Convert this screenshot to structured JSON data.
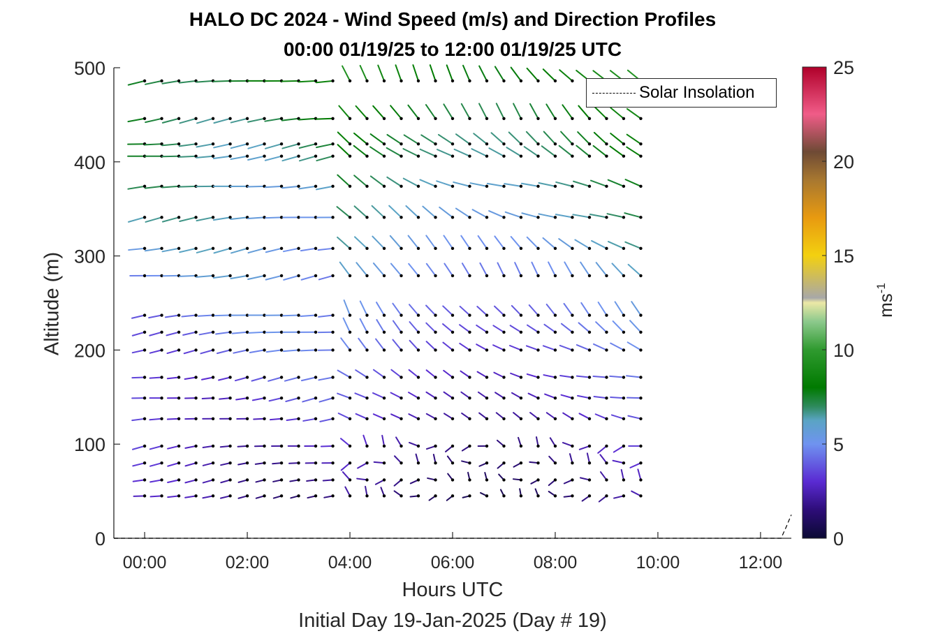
{
  "chart_data": {
    "type": "quiver",
    "title": "HALO DC 2024 - Wind Speed (m/s) and Direction Profiles",
    "subtitle": "00:00 01/19/25 to 12:00 01/19/25  UTC",
    "xlabel": "Hours UTC",
    "xlabel2": "Initial Day 19-Jan-2025 (Day # 19)",
    "ylabel": "Altitude (m)",
    "xlim": [
      -0.6,
      12.6
    ],
    "ylim": [
      0,
      500
    ],
    "x_ticks": [
      0,
      2,
      4,
      6,
      8,
      10,
      12
    ],
    "x_tick_labels": [
      "00:00",
      "02:00",
      "04:00",
      "06:00",
      "08:00",
      "10:00",
      "12:00"
    ],
    "y_ticks": [
      0,
      100,
      200,
      300,
      400,
      500
    ],
    "y_tick_labels": [
      "0",
      "100",
      "200",
      "300",
      "400",
      "500"
    ],
    "colorbar": {
      "label": "ms",
      "label_exponent": "-1",
      "range": [
        0,
        25
      ],
      "ticks": [
        0,
        5,
        10,
        15,
        20,
        25
      ],
      "tick_labels": [
        "0",
        "5",
        "10",
        "15",
        "20",
        "25"
      ],
      "colors": [
        "#0b0a34",
        "#2d0d78",
        "#5a2ad2",
        "#6f93f0",
        "#5aa4c4",
        "#2e8a5c",
        "#007a00",
        "#2f9a2f",
        "#8cc98c",
        "#ece8a6",
        "#a8a8a8",
        "#f3d010",
        "#e89a10",
        "#a87830",
        "#6e4a35",
        "#f05c88",
        "#b0002a"
      ],
      "stops": [
        0,
        0.06,
        0.12,
        0.2,
        0.25,
        0.28,
        0.32,
        0.4,
        0.46,
        0.5,
        0.51,
        0.6,
        0.68,
        0.76,
        0.82,
        0.9,
        1.0
      ]
    },
    "times_hours": [
      0,
      0.333,
      0.667,
      1.0,
      1.333,
      1.667,
      2.0,
      2.333,
      2.667,
      3.0,
      3.333,
      3.667,
      4.0,
      4.333,
      4.667,
      5.0,
      5.333,
      5.667,
      6.0,
      6.333,
      6.667,
      7.0,
      7.333,
      7.667,
      8.0,
      8.333,
      8.667,
      9.0,
      9.333,
      9.667
    ],
    "altitudes_m": [
      45,
      62,
      80,
      98,
      127,
      149,
      171,
      200,
      219,
      237,
      279,
      308,
      341,
      374,
      406,
      419,
      446,
      486
    ],
    "wind_description": "Wind barbs per time and altitude; speed 1-9 m/s, westerly flow before 04:00 turning northwesterly afterwards.",
    "legend": {
      "entries": [
        "Solar Insolation"
      ],
      "placement": "top-right"
    },
    "series": [
      {
        "name": "Solar Insolation",
        "type": "line",
        "style": "dashed",
        "x": [
          -0.6,
          12.4,
          12.5,
          12.6
        ],
        "y": [
          0,
          0,
          12,
          25
        ]
      }
    ]
  },
  "colors": {
    "axis": "#262626",
    "barb_dot": "#000000",
    "background": "#ffffff"
  }
}
